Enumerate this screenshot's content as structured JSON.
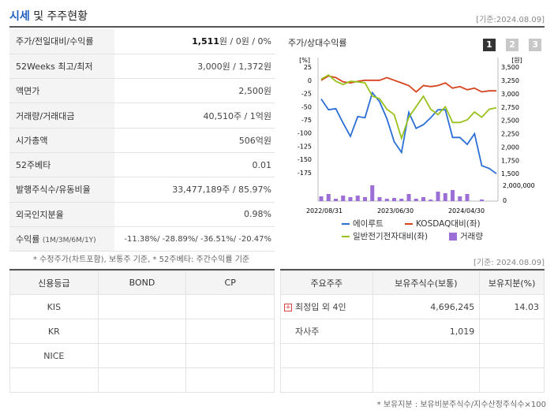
{
  "header": {
    "title_main": "시세",
    "title_rest": " 및 주주현황",
    "date": "[기준:2024.08.09]"
  },
  "quote_rows": [
    {
      "label": "주가/전일대비/수익률",
      "value_bold": "1,511",
      "value_rest": "원 / 0원 / 0%"
    },
    {
      "label": "52Weeks 최고/최저",
      "value": "3,000원 / 1,372원"
    },
    {
      "label": "액면가",
      "value": "2,500원"
    },
    {
      "label": "거래량/거래대금",
      "value": "40,510주 / 1억원"
    },
    {
      "label": "시가총액",
      "value": "506억원"
    },
    {
      "label": "52주베타",
      "value": "0.01"
    },
    {
      "label": "발행주식수/유동비율",
      "value": "33,477,189주 / 85.97%"
    },
    {
      "label": "외국인지분율",
      "value": "0.98%"
    }
  ],
  "returns": {
    "label": "수익률",
    "label_sub": "(1M/3M/6M/1Y)",
    "value": "-11.38%/ -28.89%/ -36.51%/ -20.47%"
  },
  "quote_note": "* 수정주가(차트포함), 보통주 기준, * 52주베타: 주간수익률 기준",
  "chart_panel": {
    "title": "주가/상대수익률",
    "pages": [
      "1",
      "2",
      "3"
    ],
    "left_unit": "[%]",
    "right_unit": "[원]",
    "legend": [
      {
        "name": "에이루트",
        "color": "#2b6ed6",
        "kind": "line"
      },
      {
        "name": "KOSDAQ대비(좌)",
        "color": "#d6441e",
        "kind": "line"
      },
      {
        "name": "일반전기전자대비(좌)",
        "color": "#9ac21f",
        "kind": "line"
      },
      {
        "name": "거래량",
        "color": "#9b6fd6",
        "kind": "box"
      }
    ]
  },
  "chart_data": {
    "type": "line",
    "x_ticks": [
      "2022/08/31",
      "2023/06/30",
      "2024/04/30"
    ],
    "left_axis": {
      "ticks": [
        "25",
        "0",
        "-25",
        "-50",
        "-75",
        "-100",
        "-125",
        "-150",
        "-175"
      ],
      "ylim": [
        -187,
        37
      ]
    },
    "right_axis": {
      "ticks": [
        "3,500",
        "3,250",
        "3,000",
        "2,750",
        "2,500",
        "2,250",
        "2,000",
        "1,750",
        "1,500"
      ],
      "ylim": [
        1400,
        3620
      ]
    },
    "volume_axis": {
      "ticks": [
        "2,000,000",
        "0"
      ],
      "ylim": [
        0,
        2000000
      ]
    },
    "series": [
      {
        "name": "에이루트",
        "axis": "right",
        "values": [
          2900,
          2700,
          2720,
          2450,
          2200,
          2570,
          2550,
          3020,
          2850,
          2530,
          2100,
          1900,
          2650,
          2350,
          2420,
          2550,
          2700,
          2700,
          2180,
          2180,
          2050,
          2250,
          1650,
          1600,
          1500
        ]
      },
      {
        "name": "KOSDAQ대비(좌)",
        "axis": "left",
        "values": [
          0,
          8,
          5,
          -3,
          -5,
          -2,
          0,
          0,
          0,
          5,
          0,
          -5,
          -10,
          -22,
          -10,
          -12,
          -10,
          -5,
          -15,
          -12,
          -18,
          -15,
          -22,
          -20,
          -20
        ]
      },
      {
        "name": "일반전기전자대비(좌)",
        "axis": "left",
        "values": [
          2,
          10,
          -2,
          -8,
          -2,
          -3,
          -5,
          -30,
          -35,
          -55,
          -65,
          -110,
          -70,
          -50,
          -30,
          -55,
          -65,
          -50,
          -80,
          -80,
          -75,
          -60,
          -70,
          -55,
          -52
        ]
      },
      {
        "name": "거래량",
        "axis": "volume",
        "values": [
          600000,
          900000,
          300000,
          700000,
          500000,
          700000,
          500000,
          2000000,
          500000,
          300000,
          400000,
          300000,
          900000,
          300000,
          500000,
          200000,
          1200000,
          1000000,
          1400000,
          600000,
          900000,
          0,
          200000,
          0,
          0
        ]
      }
    ]
  },
  "chart_date": "[기준: 2024.08.09]",
  "credit_table": {
    "headers": [
      "신용등급",
      "BOND",
      "CP"
    ],
    "rows": [
      [
        "KIS",
        "",
        ""
      ],
      [
        "KR",
        "",
        ""
      ],
      [
        "NICE",
        "",
        ""
      ],
      [
        "",
        "",
        ""
      ]
    ]
  },
  "holder_table": {
    "headers": [
      "주요주주",
      "보유주식수(보통)",
      "보유지분(%)"
    ],
    "rows": [
      {
        "name": "최정입 외 4인",
        "expand": true,
        "shares": "4,696,245",
        "pct": "14.03"
      },
      {
        "name": "자사주",
        "expand": false,
        "shares": "1,019",
        "pct": ""
      },
      {
        "name": "",
        "expand": false,
        "shares": "",
        "pct": ""
      },
      {
        "name": "",
        "expand": false,
        "shares": "",
        "pct": ""
      }
    ]
  },
  "holder_note": "* 보유지분 : 보유비분주식수/지수산정주식수×100"
}
